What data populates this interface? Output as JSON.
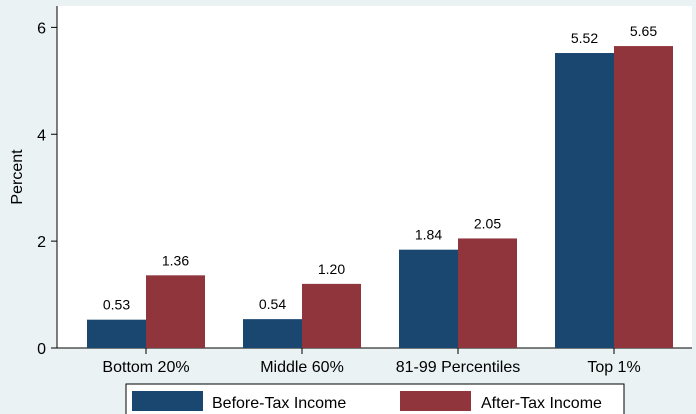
{
  "chart_data": {
    "type": "bar",
    "categories": [
      "Bottom 20%",
      "Middle 60%",
      "81-99 Percentiles",
      "Top 1%"
    ],
    "series": [
      {
        "name": "Before-Tax Income",
        "values": [
          0.53,
          0.54,
          1.84,
          5.52
        ],
        "labels": [
          "0.53",
          "0.54",
          "1.84",
          "5.52"
        ],
        "color": "#1a476f"
      },
      {
        "name": "After-Tax Income",
        "values": [
          1.36,
          1.2,
          2.05,
          5.65
        ],
        "labels": [
          "1.36",
          "1.20",
          "2.05",
          "5.65"
        ],
        "color": "#90353b"
      }
    ],
    "title": "",
    "xlabel": "",
    "ylabel": "Percent",
    "ylim": [
      0,
      6.4
    ],
    "yticks": [
      0,
      2,
      4,
      6
    ],
    "grid": false,
    "legend_position": "bottom"
  },
  "colors": {
    "background": "#eaf2f3",
    "plot_background": "#ffffff",
    "axis": "#000000"
  }
}
